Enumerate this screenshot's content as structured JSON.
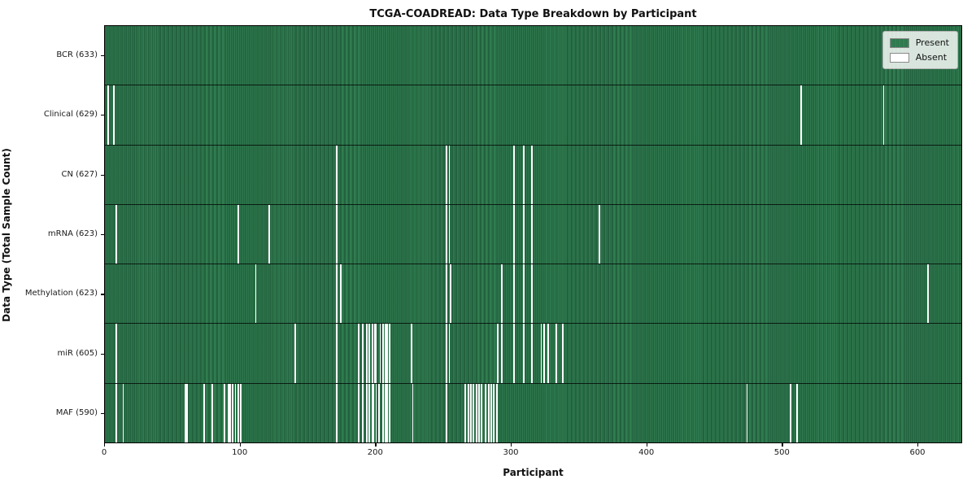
{
  "figure": {
    "title": "TCGA-COADREAD: Data Type Breakdown by Participant",
    "xlabel": "Participant",
    "ylabel": "Data Type (Total Sample Count)"
  },
  "legend": {
    "items": [
      {
        "label": "Present",
        "color": "#2e7d4e",
        "swatch": "present-swatch"
      },
      {
        "label": "Absent",
        "color": "#ffffff",
        "swatch": "absent-swatch"
      }
    ]
  },
  "chart_data": {
    "type": "heatmap",
    "title": "TCGA-COADREAD: Data Type Breakdown by Participant",
    "xlabel": "Participant",
    "ylabel": "Data Type (Total Sample Count)",
    "legend_position": "upper right",
    "legend_entries": [
      "Present",
      "Absent"
    ],
    "colors": {
      "present": "#2e7d4e",
      "absent": "#ffffff"
    },
    "n_participants": 633,
    "xlim": [
      0,
      633
    ],
    "x_ticks": [
      0,
      100,
      200,
      300,
      400,
      500,
      600
    ],
    "grid": false,
    "rows": [
      {
        "data_type": "BCR",
        "label": "BCR (633)",
        "total": 633,
        "absent_participants": []
      },
      {
        "data_type": "Clinical",
        "label": "Clinical (629)",
        "total": 629,
        "absent_participants": [
          2,
          6,
          514,
          575
        ]
      },
      {
        "data_type": "CN",
        "label": "CN (627)",
        "total": 627,
        "absent_participants": [
          171,
          252,
          254,
          302,
          309,
          315
        ]
      },
      {
        "data_type": "mRNA",
        "label": "mRNA (623)",
        "total": 623,
        "absent_participants": [
          8,
          98,
          121,
          171,
          252,
          254,
          302,
          309,
          315,
          365
        ]
      },
      {
        "data_type": "Methylation",
        "label": "Methylation (623)",
        "total": 623,
        "absent_participants": [
          111,
          171,
          174,
          252,
          255,
          293,
          302,
          309,
          315,
          608
        ]
      },
      {
        "data_type": "miR",
        "label": "miR (605)",
        "total": 605,
        "absent_participants": [
          8,
          140,
          171,
          187,
          190,
          193,
          195,
          197,
          199,
          200,
          203,
          205,
          207,
          208,
          210,
          226,
          252,
          254,
          290,
          293,
          302,
          309,
          315,
          322,
          324,
          327,
          333,
          338
        ]
      },
      {
        "data_type": "MAF",
        "label": "MAF (590)",
        "total": 590,
        "absent_participants": [
          8,
          13,
          59,
          60,
          73,
          79,
          88,
          91,
          92,
          94,
          96,
          98,
          100,
          171,
          187,
          190,
          193,
          195,
          197,
          198,
          200,
          202,
          205,
          207,
          208,
          210,
          227,
          252,
          266,
          268,
          270,
          272,
          274,
          276,
          278,
          281,
          283,
          285,
          287,
          289,
          474,
          506,
          511
        ]
      }
    ]
  }
}
